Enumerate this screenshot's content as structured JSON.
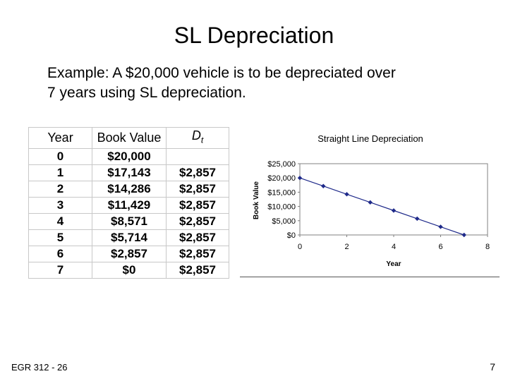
{
  "slide": {
    "title": "SL Depreciation",
    "intro_line1": "Example:  A $20,000 vehicle is to be depreciated over",
    "intro_line2": "7 years using SL depreciation.",
    "footer_left": "EGR 312 - 26",
    "page_number": "7"
  },
  "table": {
    "headers": {
      "year": "Year",
      "book_value": "Book Value",
      "dt_main": "D",
      "dt_sub": "t"
    },
    "rows": [
      {
        "year": "0",
        "book_value": "$20,000",
        "dt": ""
      },
      {
        "year": "1",
        "book_value": "$17,143",
        "dt": "$2,857"
      },
      {
        "year": "2",
        "book_value": "$14,286",
        "dt": "$2,857"
      },
      {
        "year": "3",
        "book_value": "$11,429",
        "dt": "$2,857"
      },
      {
        "year": "4",
        "book_value": "$8,571",
        "dt": "$2,857"
      },
      {
        "year": "5",
        "book_value": "$5,714",
        "dt": "$2,857"
      },
      {
        "year": "6",
        "book_value": "$2,857",
        "dt": "$2,857"
      },
      {
        "year": "7",
        "book_value": "$0",
        "dt": "$2,857"
      }
    ]
  },
  "chart_data": {
    "type": "line",
    "title": "Straight Line Depreciation",
    "xlabel": "Year",
    "ylabel": "Book Value",
    "x": [
      0,
      1,
      2,
      3,
      4,
      5,
      6,
      7
    ],
    "y": [
      20000,
      17143,
      14286,
      11429,
      8571,
      5714,
      2857,
      0
    ],
    "xlim": [
      0,
      8
    ],
    "ylim": [
      0,
      25000
    ],
    "x_ticks": [
      "0",
      "2",
      "4",
      "6",
      "8"
    ],
    "y_ticks": [
      "$0",
      "$5,000",
      "$10,000",
      "$15,000",
      "$20,000",
      "$25,000"
    ],
    "grid": false,
    "legend": "none",
    "series_color": "#1f2a8a"
  }
}
